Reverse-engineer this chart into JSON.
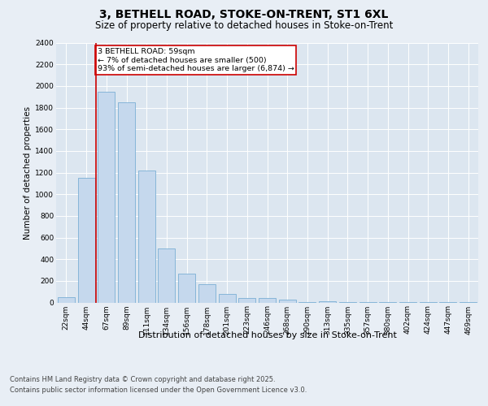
{
  "title_line1": "3, BETHELL ROAD, STOKE-ON-TRENT, ST1 6XL",
  "title_line2": "Size of property relative to detached houses in Stoke-on-Trent",
  "xlabel": "Distribution of detached houses by size in Stoke-on-Trent",
  "ylabel": "Number of detached properties",
  "categories": [
    "22sqm",
    "44sqm",
    "67sqm",
    "89sqm",
    "111sqm",
    "134sqm",
    "156sqm",
    "178sqm",
    "201sqm",
    "223sqm",
    "246sqm",
    "268sqm",
    "290sqm",
    "313sqm",
    "335sqm",
    "357sqm",
    "380sqm",
    "402sqm",
    "424sqm",
    "447sqm",
    "469sqm"
  ],
  "values": [
    50,
    1150,
    1950,
    1850,
    1220,
    500,
    265,
    170,
    80,
    40,
    40,
    30,
    5,
    15,
    5,
    3,
    3,
    2,
    1,
    1,
    2
  ],
  "bar_color": "#c5d8ed",
  "bar_edge_color": "#7bafd4",
  "marker_label": "3 BETHELL ROAD: 59sqm\n← 7% of detached houses are smaller (500)\n93% of semi-detached houses are larger (6,874) →",
  "vline_color": "#cc0000",
  "annotation_box_color": "#cc0000",
  "ylim": [
    0,
    2400
  ],
  "yticks": [
    0,
    200,
    400,
    600,
    800,
    1000,
    1200,
    1400,
    1600,
    1800,
    2000,
    2200,
    2400
  ],
  "bg_color": "#e8eef5",
  "plot_bg_color": "#dce6f0",
  "footer_line1": "Contains HM Land Registry data © Crown copyright and database right 2025.",
  "footer_line2": "Contains public sector information licensed under the Open Government Licence v3.0.",
  "title_fontsize": 10,
  "subtitle_fontsize": 8.5,
  "axis_label_fontsize": 8,
  "tick_fontsize": 6.5,
  "footer_fontsize": 6,
  "ylabel_fontsize": 7.5
}
